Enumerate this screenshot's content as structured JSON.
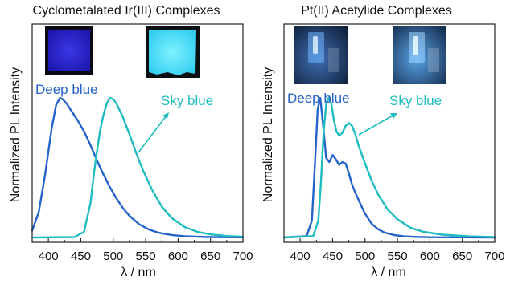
{
  "colors": {
    "deep": "#2563c9",
    "sky": "#1fbcc0",
    "axis": "#222222"
  },
  "chart_data": [
    {
      "type": "line",
      "title": "Cyclometalated Ir(III) Complexes",
      "xlabel": "λ / nm",
      "ylabel": "Normalized PL Intensity",
      "xlim": [
        375,
        700
      ],
      "ylim": [
        0,
        1.0
      ],
      "xticks": [
        400,
        450,
        500,
        550,
        600,
        650,
        700
      ],
      "inset_photos": [
        {
          "name": "deep-blue-film-photo",
          "tone": "deep-violet"
        },
        {
          "name": "sky-blue-film-photo",
          "tone": "cyan"
        }
      ],
      "series": [
        {
          "name": "Deep blue",
          "color": "#2563c9",
          "x": [
            375,
            385,
            395,
            405,
            412,
            418,
            422,
            428,
            435,
            445,
            455,
            465,
            475,
            485,
            495,
            505,
            515,
            525,
            540,
            555,
            570,
            590,
            610,
            630,
            650,
            675,
            700
          ],
          "y": [
            0.05,
            0.18,
            0.45,
            0.78,
            0.95,
            1.0,
            0.99,
            0.96,
            0.91,
            0.84,
            0.76,
            0.66,
            0.55,
            0.45,
            0.36,
            0.28,
            0.21,
            0.155,
            0.095,
            0.057,
            0.034,
            0.018,
            0.009,
            0.005,
            0.003,
            0.002,
            0.001
          ]
        },
        {
          "name": "Sky blue",
          "color": "#1fbcc0",
          "x": [
            375,
            440,
            455,
            465,
            470,
            475,
            480,
            485,
            490,
            495,
            500,
            505,
            515,
            525,
            535,
            545,
            560,
            575,
            590,
            610,
            630,
            650,
            675,
            700
          ],
          "y": [
            0.0,
            0.003,
            0.04,
            0.25,
            0.45,
            0.62,
            0.77,
            0.88,
            0.96,
            1.0,
            0.99,
            0.96,
            0.86,
            0.74,
            0.61,
            0.49,
            0.34,
            0.22,
            0.14,
            0.075,
            0.04,
            0.022,
            0.011,
            0.005
          ]
        }
      ]
    },
    {
      "type": "line",
      "title": "Pt(II) Acetylide Complexes",
      "xlabel": "λ / nm",
      "ylabel": "Normalized PL Intensity",
      "xlim": [
        375,
        700
      ],
      "ylim": [
        0,
        1.0
      ],
      "xticks": [
        400,
        450,
        500,
        550,
        600,
        650,
        700
      ],
      "inset_photos": [
        {
          "name": "deep-blue-device-photo",
          "tone": "dark-blue"
        },
        {
          "name": "sky-blue-device-photo",
          "tone": "light-blue"
        }
      ],
      "series": [
        {
          "name": "Deep blue",
          "color": "#2563c9",
          "x": [
            375,
            410,
            418,
            423,
            427,
            431,
            435,
            440,
            445,
            450,
            455,
            460,
            465,
            470,
            475,
            480,
            485,
            490,
            495,
            500,
            510,
            520,
            530,
            545,
            560,
            580,
            600,
            650,
            700
          ],
          "y": [
            0.0,
            0.01,
            0.12,
            0.55,
            0.92,
            1.0,
            0.82,
            0.57,
            0.54,
            0.59,
            0.56,
            0.52,
            0.54,
            0.53,
            0.46,
            0.38,
            0.32,
            0.27,
            0.22,
            0.17,
            0.1,
            0.06,
            0.035,
            0.017,
            0.008,
            0.004,
            0.002,
            0.001,
            0.0
          ]
        },
        {
          "name": "Sky blue",
          "color": "#1fbcc0",
          "x": [
            375,
            420,
            428,
            432,
            436,
            440,
            444,
            448,
            452,
            456,
            460,
            465,
            470,
            475,
            480,
            485,
            490,
            500,
            510,
            520,
            535,
            550,
            570,
            590,
            620,
            660,
            700
          ],
          "y": [
            0.0,
            0.01,
            0.12,
            0.4,
            0.75,
            0.95,
            1.0,
            0.96,
            0.84,
            0.76,
            0.73,
            0.75,
            0.8,
            0.82,
            0.8,
            0.74,
            0.66,
            0.53,
            0.41,
            0.31,
            0.2,
            0.13,
            0.07,
            0.04,
            0.02,
            0.008,
            0.003
          ]
        }
      ]
    }
  ]
}
